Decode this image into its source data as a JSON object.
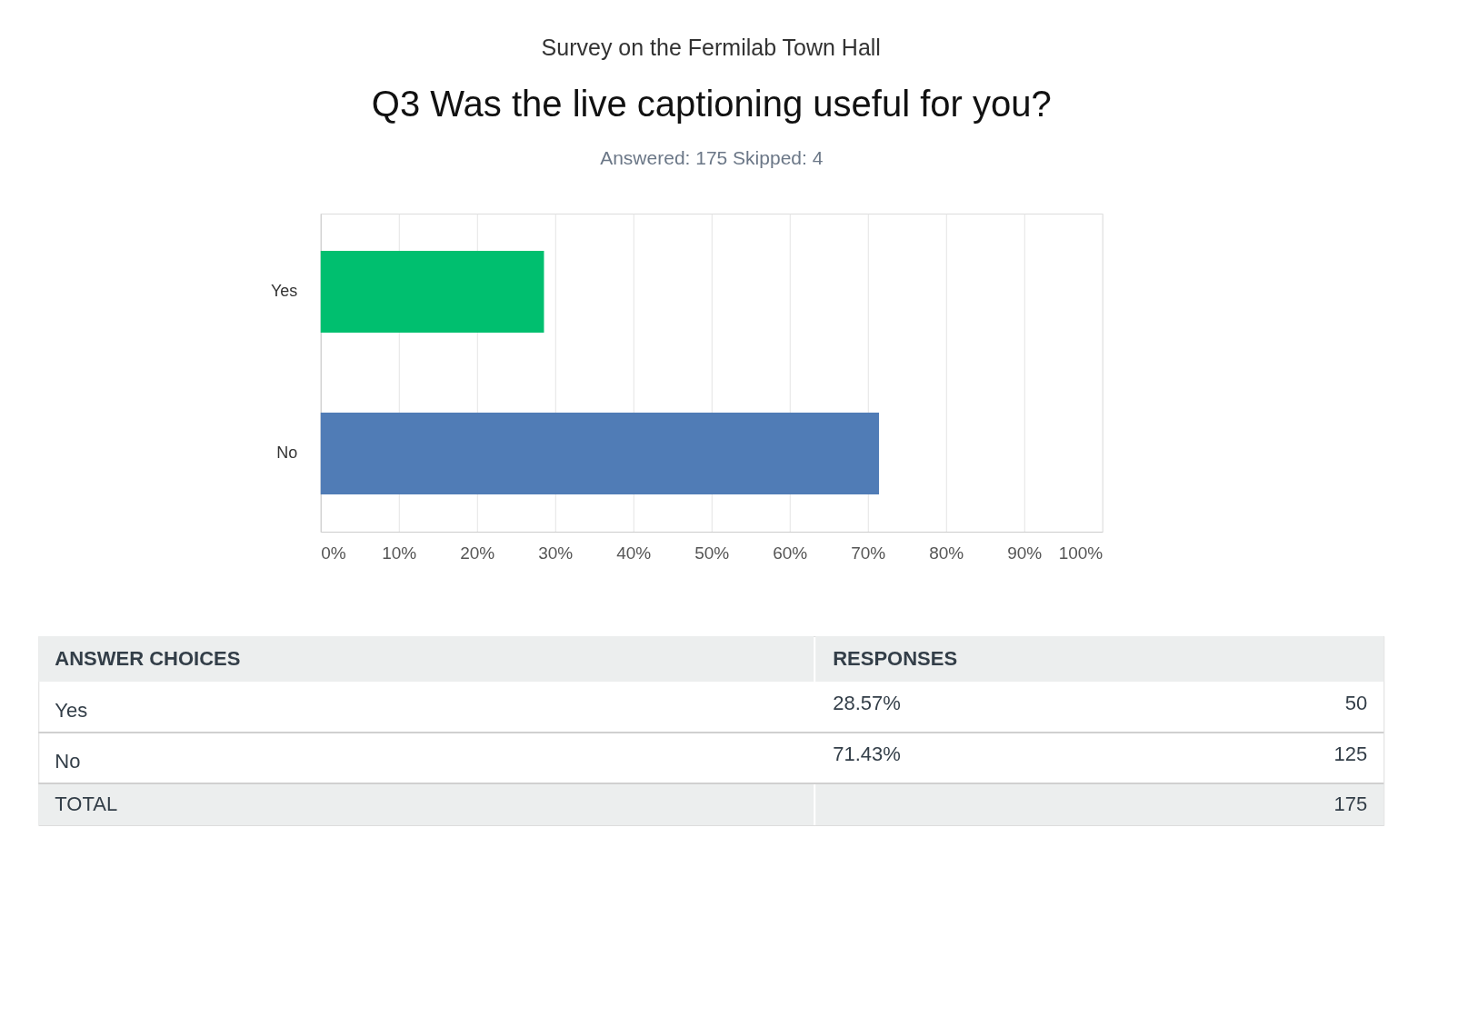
{
  "chart_data": {
    "type": "bar",
    "orientation": "horizontal",
    "title": "Q3 Was the live captioning useful for you?",
    "subtitle": "Answered: 175     Skipped: 4",
    "categories": [
      "Yes",
      "No"
    ],
    "values": [
      28.57,
      71.43
    ],
    "colors": [
      "#00bf6f",
      "#507cb6"
    ],
    "annotations": [
      "Survey on the Fermilab Town Hall",
      "ANSWER CHOICES",
      "RESPONSES",
      "28.57%",
      "71.43%",
      "50",
      "125",
      "TOTAL",
      "175"
    ],
    "xlim": [
      0,
      100
    ],
    "xticks": [
      {
        "value": 0,
        "label": "0%"
      },
      {
        "value": 10,
        "label": "10%"
      },
      {
        "value": 20,
        "label": "20%"
      },
      {
        "value": 30,
        "label": "30%"
      },
      {
        "value": 40,
        "label": "40%"
      },
      {
        "value": 50,
        "label": "50%"
      },
      {
        "value": 60,
        "label": "60%"
      },
      {
        "value": 70,
        "label": "70%"
      },
      {
        "value": 80,
        "label": "80%"
      },
      {
        "value": 90,
        "label": "90%"
      },
      {
        "value": 100,
        "label": "100%"
      }
    ],
    "grid": "x"
  }
}
